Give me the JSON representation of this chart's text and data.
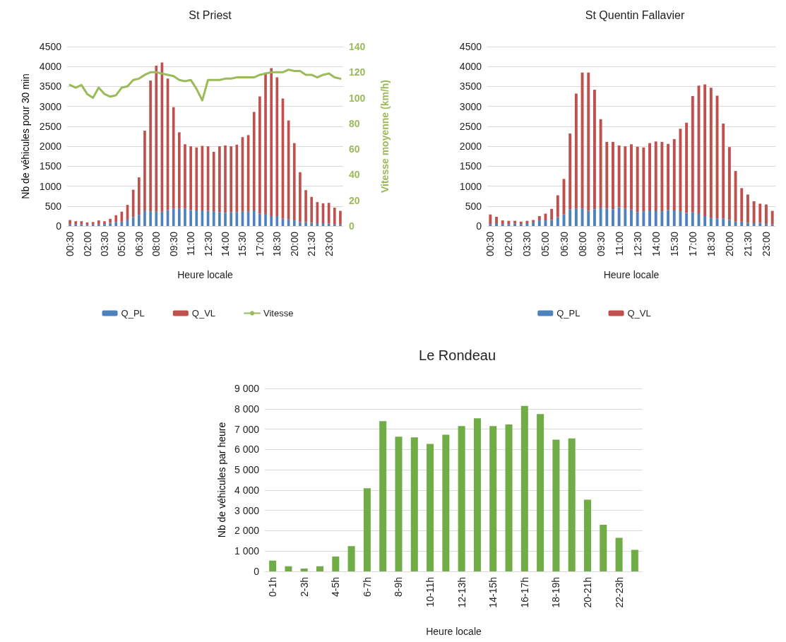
{
  "chart_data": [
    {
      "type": "bar",
      "title": "St Priest",
      "xlabel": "Heure locale",
      "ylabel": "Nb de véhicules pour 30 min",
      "y2label": "Vitesse moyenne (km/h)",
      "stacked": true,
      "grid": "y",
      "legend": "bottom",
      "categories": [
        "00:30",
        null,
        null,
        "02:00",
        null,
        null,
        "03:30",
        null,
        null,
        "05:00",
        null,
        null,
        "06:30",
        null,
        null,
        "08:00",
        null,
        null,
        "09:30",
        null,
        null,
        "11:00",
        null,
        null,
        "12:30",
        null,
        null,
        "14:00",
        null,
        null,
        "15:30",
        null,
        null,
        "17:00",
        null,
        null,
        "18:30",
        null,
        null,
        "20:00",
        null,
        null,
        "21:30",
        null,
        null,
        "23:00",
        null,
        null
      ],
      "ylim": [
        0,
        4500
      ],
      "yticks": [
        0,
        500,
        1000,
        1500,
        2000,
        2500,
        3000,
        3500,
        4000,
        4500
      ],
      "y2lim": [
        0,
        140
      ],
      "y2ticks": [
        0,
        20,
        40,
        60,
        80,
        100,
        120,
        140
      ],
      "series": [
        {
          "name": "Q_PL",
          "color": "#4f81bd",
          "values": [
            40,
            40,
            40,
            30,
            40,
            50,
            50,
            80,
            100,
            110,
            160,
            220,
            280,
            390,
            370,
            360,
            360,
            400,
            430,
            440,
            430,
            400,
            390,
            390,
            380,
            370,
            350,
            330,
            350,
            350,
            370,
            360,
            390,
            310,
            300,
            250,
            250,
            180,
            170,
            140,
            100,
            100,
            80,
            70,
            70,
            60,
            40,
            40
          ]
        },
        {
          "name": "Q_VL",
          "color": "#c0504d",
          "values": [
            110,
            80,
            80,
            60,
            60,
            90,
            70,
            100,
            170,
            250,
            370,
            690,
            940,
            2000,
            3280,
            3660,
            3740,
            3300,
            2550,
            1910,
            1620,
            1600,
            1580,
            1620,
            1620,
            1490,
            1650,
            1690,
            1650,
            1690,
            1860,
            1920,
            2470,
            2940,
            3550,
            3710,
            3480,
            3020,
            2480,
            1940,
            1250,
            800,
            650,
            530,
            500,
            520,
            420,
            340
          ]
        },
        {
          "name": "Vitesse",
          "type": "line",
          "axis": "y2",
          "color": "#9bbb59",
          "marker": "none",
          "line_style": "solid",
          "values": [
            110,
            108,
            110,
            103,
            100,
            108,
            103,
            101,
            102,
            108,
            109,
            114,
            115,
            118,
            120,
            120,
            119,
            118,
            117,
            114,
            113,
            114,
            107,
            98,
            114,
            114,
            114,
            115,
            115,
            116,
            116,
            116,
            116,
            118,
            119,
            120,
            120,
            120,
            122,
            121,
            121,
            118,
            118,
            116,
            118,
            119,
            116,
            115
          ]
        }
      ]
    },
    {
      "type": "bar",
      "title": "St Quentin Fallavier",
      "xlabel": "Heure locale",
      "stacked": true,
      "grid": "y",
      "legend": "bottom",
      "categories": [
        "00:30",
        null,
        null,
        "02:00",
        null,
        null,
        "03:30",
        null,
        null,
        "05:00",
        null,
        null,
        "06:30",
        null,
        null,
        "08:00",
        null,
        null,
        "09:30",
        null,
        null,
        "11:00",
        null,
        null,
        "12:30",
        null,
        null,
        "14:00",
        null,
        null,
        "15:30",
        null,
        null,
        "17:00",
        null,
        null,
        "18:30",
        null,
        null,
        "20:00",
        null,
        null,
        "21:30",
        null,
        null,
        "23:00",
        null
      ],
      "ylim": [
        0,
        4500
      ],
      "yticks": [
        0,
        500,
        1000,
        1500,
        2000,
        2500,
        3000,
        3500,
        4000,
        4500
      ],
      "series": [
        {
          "name": "Q_PL",
          "color": "#4f81bd",
          "values": [
            50,
            70,
            50,
            50,
            60,
            50,
            70,
            90,
            140,
            140,
            150,
            220,
            290,
            420,
            440,
            440,
            380,
            420,
            460,
            430,
            420,
            470,
            430,
            410,
            350,
            370,
            390,
            390,
            370,
            400,
            390,
            370,
            330,
            350,
            320,
            250,
            210,
            190,
            190,
            150,
            110,
            110,
            80,
            70,
            80,
            50,
            40
          ]
        },
        {
          "name": "Q_VL",
          "color": "#c0504d",
          "values": [
            240,
            160,
            90,
            80,
            70,
            60,
            60,
            60,
            110,
            170,
            280,
            550,
            890,
            1900,
            2880,
            3410,
            3470,
            3000,
            2220,
            1680,
            1690,
            1550,
            1570,
            1640,
            1640,
            1600,
            1690,
            1730,
            1740,
            1660,
            1790,
            2070,
            2260,
            2910,
            3200,
            3300,
            3260,
            3080,
            2380,
            1830,
            1270,
            840,
            710,
            550,
            480,
            490,
            340
          ]
        }
      ]
    },
    {
      "type": "bar",
      "title": "Le Rondeau",
      "xlabel": "Heure locale",
      "ylabel": "Nb de véhicules par heure",
      "grid": "y",
      "color": "#70ad47",
      "categories": [
        "0-1h",
        null,
        "2-3h",
        null,
        "4-5h",
        null,
        "6-7h",
        null,
        "8-9h",
        null,
        "10-11h",
        null,
        "12-13h",
        null,
        "14-15h",
        null,
        "16-17h",
        null,
        "18-19h",
        null,
        "20-21h",
        null,
        "22-23h",
        null
      ],
      "ylim": [
        0,
        9000
      ],
      "yticks": [
        0,
        {
          "value": 1000,
          "label": "1 000"
        },
        {
          "value": 2000,
          "label": "2 000"
        },
        {
          "value": 3000,
          "label": "3 000"
        },
        {
          "value": 4000,
          "label": "4 000"
        },
        {
          "value": 5000,
          "label": "5 000"
        },
        {
          "value": 6000,
          "label": "6 000"
        },
        {
          "value": 7000,
          "label": "7 000"
        },
        {
          "value": 8000,
          "label": "8 000"
        },
        {
          "value": 9000,
          "label": "9 000"
        }
      ],
      "values": [
        530,
        250,
        140,
        250,
        730,
        1240,
        4090,
        7390,
        6630,
        6590,
        6270,
        6720,
        7150,
        7530,
        7150,
        7230,
        8140,
        7740,
        6480,
        6540,
        3530,
        2290,
        1650,
        1060
      ]
    }
  ]
}
